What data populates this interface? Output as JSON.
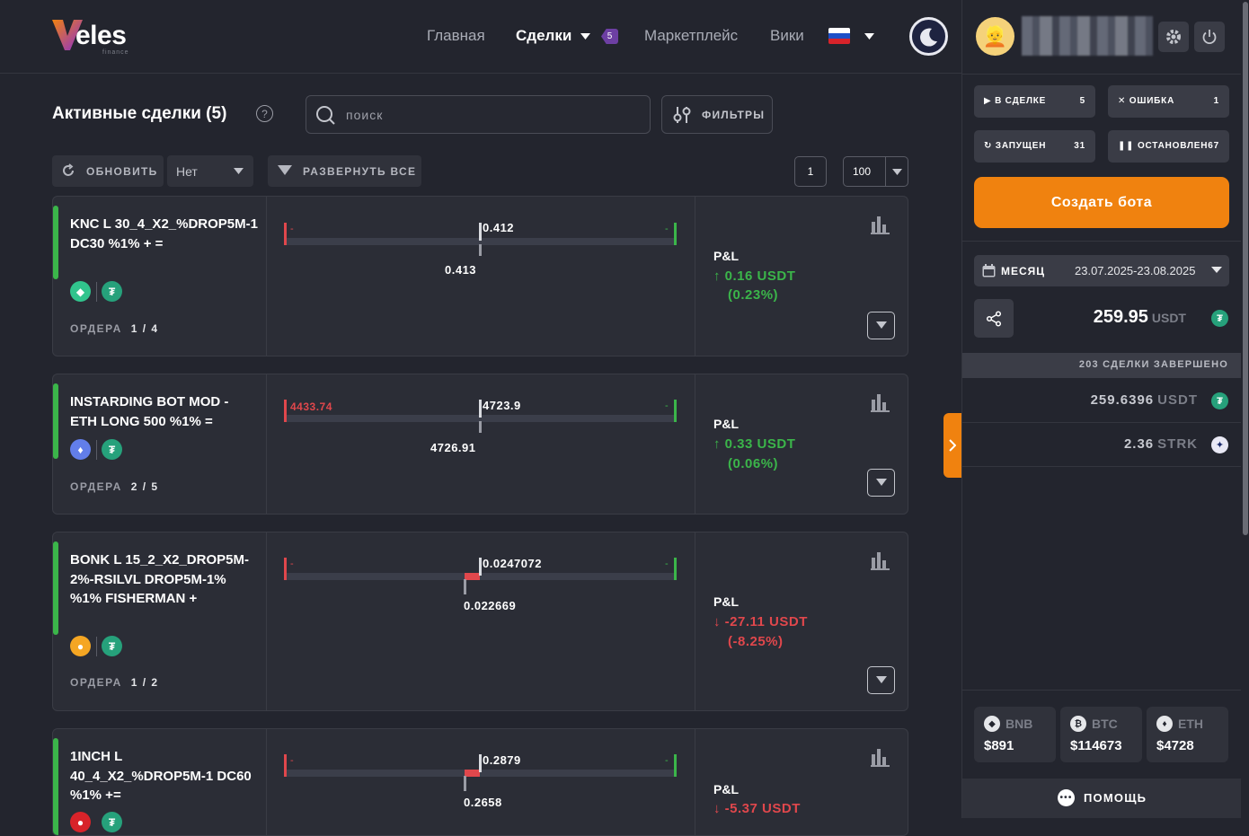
{
  "header": {
    "logo_text": "eles",
    "logo_sub": "finance",
    "nav": {
      "home": "Главная",
      "deals": "Сделки",
      "deals_badge": "5",
      "market": "Маркетплейс",
      "wiki": "Вики"
    }
  },
  "toolbar": {
    "title": "Активные сделки (5)",
    "search_placeholder": "поиск",
    "filters_label": "ФИЛЬТРЫ",
    "refresh_label": "ОБНОВИТЬ",
    "select_value": "Нет",
    "expand_label": "РАЗВЕРНУТЬ ВСЕ",
    "page": "1",
    "per_page": "100"
  },
  "deals": [
    {
      "name": "KNC L 30_4_X2_%DROP5M-1 DC30 %1% + =",
      "orders_label": "ОРДЕРА",
      "orders": "1 / 4",
      "left_label": "-",
      "right_label": "-",
      "current": "0.412",
      "entry": "0.413",
      "pnl_label": "P&L",
      "pnl_value": "↑ 0.16 USDT",
      "pnl_percent": "(0.23%)",
      "pnl_dir": "up",
      "fill": 0.0
    },
    {
      "name": "INSTARDING BOT MOD - ETH LONG 500 %1% =",
      "orders_label": "ОРДЕРА",
      "orders": "2 / 5",
      "left_label": "4433.74",
      "right_label": "-",
      "current": "4723.9",
      "entry": "4726.91",
      "pnl_label": "P&L",
      "pnl_value": "↑ 0.33 USDT",
      "pnl_percent": "(0.06%)",
      "pnl_dir": "up",
      "fill": 0.0
    },
    {
      "name": "BONK L 15_2_X2_DROP5M-2%-RSILVL DROP5M-1% %1% FISHERMAN +",
      "orders_label": "ОРДЕРА",
      "orders": "1 / 2",
      "left_label": "-",
      "right_label": "-",
      "current": "0.0247072",
      "entry": "0.022669",
      "pnl_label": "P&L",
      "pnl_value": "↓ -27.11 USDT",
      "pnl_percent": "(-8.25%)",
      "pnl_dir": "down",
      "fill": 0.04
    },
    {
      "name": "1INCH L 40_4_X2_%DROP5M-1 DC60 %1% +=",
      "orders_label": "ОРДЕРА",
      "orders": "",
      "left_label": "-",
      "right_label": "-",
      "current": "0.2879",
      "entry": "0.2658",
      "pnl_label": "P&L",
      "pnl_value": "↓ -5.37 USDT",
      "pnl_percent": "",
      "pnl_dir": "down",
      "fill": 0.04
    }
  ],
  "sidebar": {
    "status": [
      {
        "label": "В СДЕЛКЕ",
        "count": "5"
      },
      {
        "label": "ОШИБКА",
        "count": "1"
      },
      {
        "label": "ЗАПУЩЕН",
        "count": "31"
      },
      {
        "label": "ОСТАНОВЛЕН",
        "count": "67"
      }
    ],
    "create_label": "Создать бота",
    "period_label": "МЕСЯЦ",
    "period_range": "23.07.2025-23.08.2025",
    "total_value": "259.95",
    "total_unit": "USDT",
    "completed": "203 СДЕЛКИ ЗАВЕРШЕНО",
    "rows": [
      {
        "value": "259.6396",
        "unit": "USDT"
      },
      {
        "value": "2.36",
        "unit": "STRK"
      }
    ],
    "prices": [
      {
        "symbol": "BNB",
        "value": "$891"
      },
      {
        "symbol": "BTC",
        "value": "$114673"
      },
      {
        "symbol": "ETH",
        "value": "$4728"
      }
    ],
    "help_label": "ПОМОЩЬ"
  },
  "colors": {
    "accent": "#f0820f",
    "green": "#3bb54a",
    "red": "#e0474c",
    "purple": "#6d3fa3"
  }
}
